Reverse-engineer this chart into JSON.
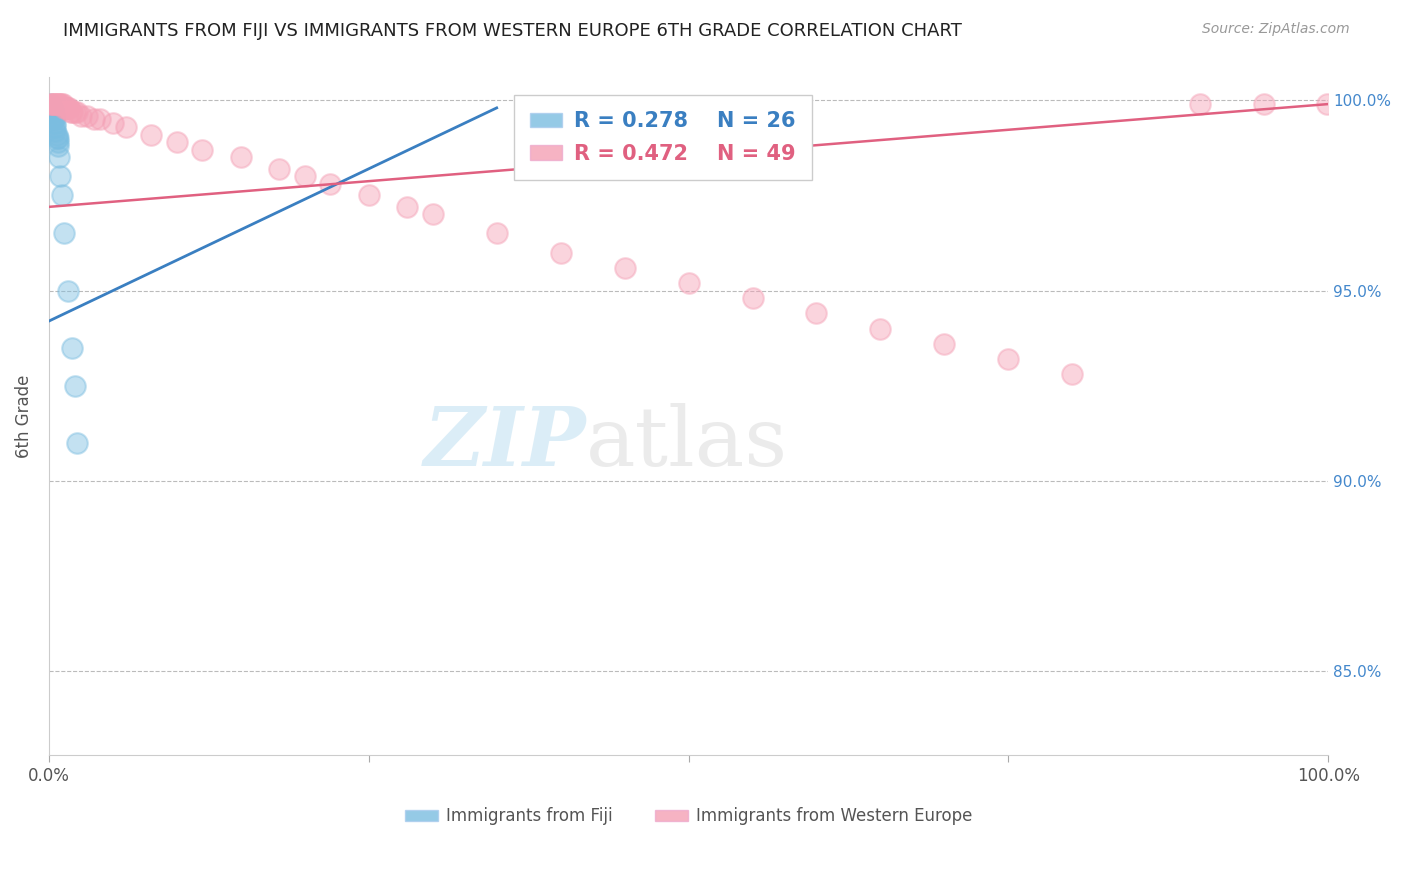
{
  "title": "IMMIGRANTS FROM FIJI VS IMMIGRANTS FROM WESTERN EUROPE 6TH GRADE CORRELATION CHART",
  "source": "Source: ZipAtlas.com",
  "ylabel": "6th Grade",
  "xlim": [
    0.0,
    1.0
  ],
  "ylim": [
    0.828,
    1.006
  ],
  "yticks": [
    0.85,
    0.9,
    0.95,
    1.0
  ],
  "ytick_labels": [
    "85.0%",
    "90.0%",
    "95.0%",
    "100.0%"
  ],
  "legend_fiji_R": "R = 0.278",
  "legend_fiji_N": "N = 26",
  "legend_weurope_R": "R = 0.472",
  "legend_weurope_N": "N = 49",
  "legend_fiji_label": "Immigrants from Fiji",
  "legend_weurope_label": "Immigrants from Western Europe",
  "fiji_color": "#7bbde0",
  "weurope_color": "#f4a0b5",
  "fiji_trend_color": "#3a7fc1",
  "weurope_trend_color": "#e06080",
  "fiji_x": [
    0.001,
    0.001,
    0.002,
    0.002,
    0.003,
    0.003,
    0.003,
    0.004,
    0.004,
    0.004,
    0.005,
    0.005,
    0.005,
    0.006,
    0.006,
    0.007,
    0.007,
    0.007,
    0.008,
    0.009,
    0.01,
    0.012,
    0.015,
    0.018,
    0.02,
    0.022
  ],
  "fiji_y": [
    0.999,
    0.998,
    0.998,
    0.997,
    0.997,
    0.997,
    0.996,
    0.996,
    0.995,
    0.995,
    0.994,
    0.993,
    0.992,
    0.991,
    0.99,
    0.99,
    0.989,
    0.988,
    0.985,
    0.98,
    0.975,
    0.965,
    0.95,
    0.935,
    0.925,
    0.91
  ],
  "fiji_trendline_x": [
    0.0,
    0.35
  ],
  "fiji_trendline_y": [
    0.942,
    0.998
  ],
  "weurope_x": [
    0.001,
    0.002,
    0.003,
    0.004,
    0.005,
    0.006,
    0.007,
    0.008,
    0.009,
    0.01,
    0.011,
    0.012,
    0.013,
    0.014,
    0.015,
    0.016,
    0.017,
    0.018,
    0.02,
    0.022,
    0.025,
    0.03,
    0.035,
    0.04,
    0.05,
    0.06,
    0.08,
    0.1,
    0.12,
    0.15,
    0.18,
    0.2,
    0.22,
    0.25,
    0.28,
    0.3,
    0.35,
    0.4,
    0.45,
    0.5,
    0.55,
    0.6,
    0.65,
    0.7,
    0.75,
    0.8,
    0.9,
    0.95,
    0.999
  ],
  "weurope_y": [
    0.999,
    0.999,
    0.999,
    0.999,
    0.999,
    0.999,
    0.999,
    0.999,
    0.999,
    0.999,
    0.999,
    0.998,
    0.998,
    0.998,
    0.998,
    0.998,
    0.997,
    0.997,
    0.997,
    0.997,
    0.996,
    0.996,
    0.995,
    0.995,
    0.994,
    0.993,
    0.991,
    0.989,
    0.987,
    0.985,
    0.982,
    0.98,
    0.978,
    0.975,
    0.972,
    0.97,
    0.965,
    0.96,
    0.956,
    0.952,
    0.948,
    0.944,
    0.94,
    0.936,
    0.932,
    0.928,
    0.999,
    0.999,
    0.999
  ],
  "weurope_trendline_x": [
    0.0,
    1.0
  ],
  "weurope_trendline_y": [
    0.972,
    0.999
  ]
}
